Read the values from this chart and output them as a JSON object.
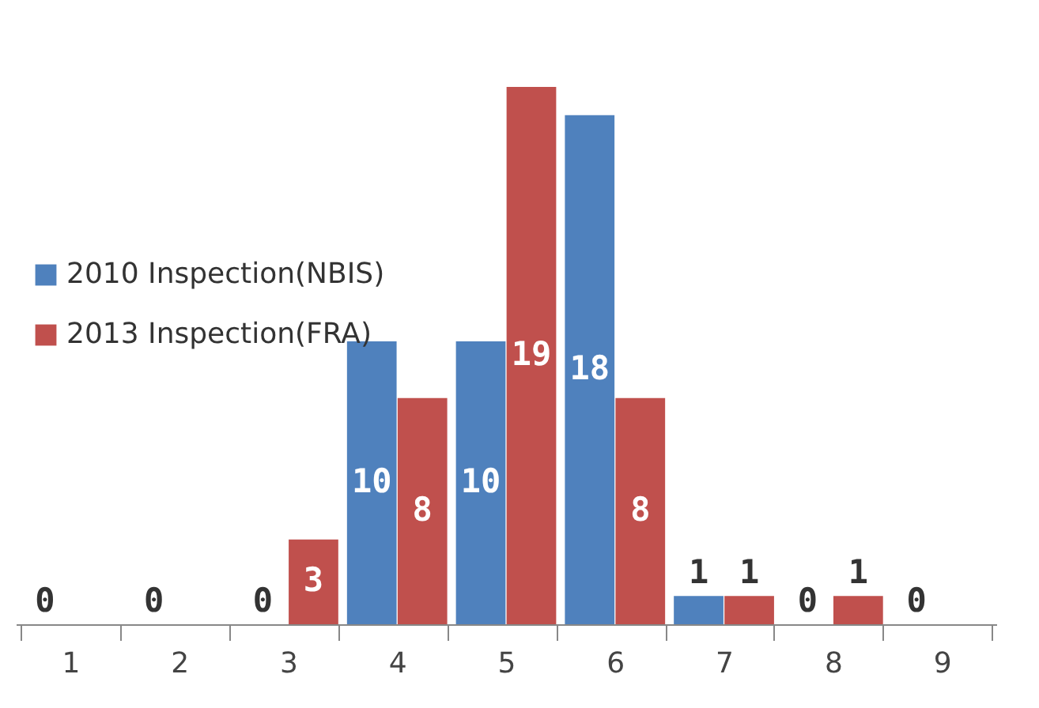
{
  "chart_data": {
    "type": "bar",
    "categories": [
      "1",
      "2",
      "3",
      "4",
      "5",
      "6",
      "7",
      "8",
      "9"
    ],
    "series": [
      {
        "name": "2010 Inspection(NBIS)",
        "color": "#4f81bd",
        "values": [
          0,
          0,
          0,
          10,
          10,
          18,
          1,
          0,
          0
        ],
        "value_labels": [
          "0",
          "0",
          "0",
          "10",
          "10",
          "18",
          "1",
          "0",
          "0"
        ]
      },
      {
        "name": "2013 Inspection(FRA)",
        "color": "#c0504d",
        "values": [
          null,
          null,
          3,
          8,
          19,
          8,
          1,
          1,
          null
        ],
        "value_labels": [
          null,
          null,
          "3",
          "8",
          "19",
          "8",
          "1",
          "1",
          null
        ]
      }
    ],
    "legend": "left",
    "grid": false
  }
}
